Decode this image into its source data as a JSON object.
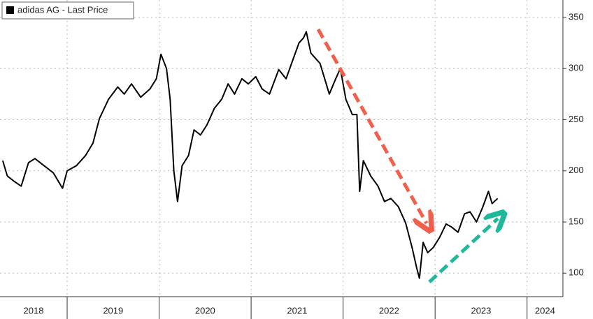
{
  "chart_data": {
    "type": "line",
    "legend": "adidas AG - Last Price",
    "xlim": [
      2018.27,
      2024.39
    ],
    "ylim": [
      77,
      367
    ],
    "yticks": [
      100,
      150,
      200,
      250,
      300,
      350
    ],
    "xticks": [
      {
        "value": 2018.5,
        "label": "2018"
      },
      {
        "value": 2019.5,
        "label": "2019"
      },
      {
        "value": 2020.5,
        "label": "2020"
      },
      {
        "value": 2021.5,
        "label": "2021"
      },
      {
        "value": 2022.5,
        "label": "2022"
      },
      {
        "value": 2023.5,
        "label": "2023"
      },
      {
        "value": 2024.5,
        "label": "2024"
      }
    ],
    "grid": true,
    "series": [
      {
        "name": "adidas AG - Last Price",
        "color": "#000000",
        "x": [
          2018.3,
          2018.35,
          2018.42,
          2018.5,
          2018.58,
          2018.65,
          2018.75,
          2018.85,
          2018.95,
          2019.0,
          2019.1,
          2019.2,
          2019.28,
          2019.35,
          2019.45,
          2019.55,
          2019.62,
          2019.7,
          2019.8,
          2019.9,
          2019.97,
          2020.02,
          2020.08,
          2020.12,
          2020.16,
          2020.2,
          2020.25,
          2020.32,
          2020.38,
          2020.45,
          2020.52,
          2020.6,
          2020.68,
          2020.75,
          2020.82,
          2020.9,
          2020.97,
          2021.05,
          2021.12,
          2021.2,
          2021.3,
          2021.38,
          2021.46,
          2021.52,
          2021.57,
          2021.6,
          2021.65,
          2021.75,
          2021.8,
          2021.85,
          2021.92,
          2021.97,
          2022.03,
          2022.1,
          2022.15,
          2022.18,
          2022.22,
          2022.3,
          2022.38,
          2022.45,
          2022.52,
          2022.6,
          2022.68,
          2022.75,
          2022.8,
          2022.83,
          2022.87,
          2022.92,
          2022.98,
          2023.05,
          2023.12,
          2023.18,
          2023.25,
          2023.32,
          2023.38,
          2023.45,
          2023.52,
          2023.58,
          2023.62,
          2023.68
        ],
        "values": [
          210,
          195,
          190,
          185,
          208,
          212,
          205,
          198,
          183,
          200,
          205,
          215,
          227,
          251,
          270,
          282,
          275,
          285,
          272,
          280,
          290,
          314,
          300,
          270,
          200,
          170,
          205,
          215,
          240,
          235,
          245,
          261,
          270,
          285,
          275,
          290,
          285,
          292,
          280,
          275,
          299,
          290,
          310,
          325,
          330,
          336,
          315,
          305,
          290,
          275,
          290,
          300,
          270,
          255,
          255,
          180,
          210,
          195,
          185,
          170,
          173,
          165,
          149,
          125,
          105,
          95,
          130,
          120,
          125,
          135,
          148,
          145,
          140,
          158,
          160,
          150,
          165,
          180,
          168,
          173
        ]
      }
    ]
  }
}
